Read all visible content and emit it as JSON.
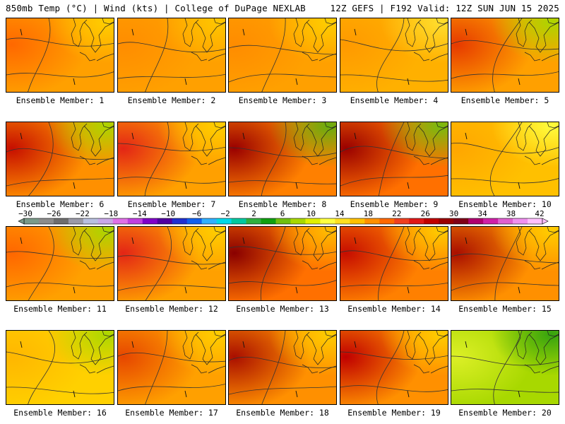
{
  "header": {
    "left": "850mb Temp (°C) | Wind (kts) | College of DuPage NEXLAB",
    "right": "12Z GEFS | F192 Valid: 12Z SUN JUN 15 2025"
  },
  "caption_prefix": "Ensemble Member: ",
  "members": [
    {
      "label": "Ensemble Member: 1"
    },
    {
      "label": "Ensemble Member: 2"
    },
    {
      "label": "Ensemble Member: 3"
    },
    {
      "label": "Ensemble Member: 4"
    },
    {
      "label": "Ensemble Member: 5"
    },
    {
      "label": "Ensemble Member: 6"
    },
    {
      "label": "Ensemble Member: 7"
    },
    {
      "label": "Ensemble Member: 8"
    },
    {
      "label": "Ensemble Member: 9"
    },
    {
      "label": "Ensemble Member: 10"
    },
    {
      "label": "Ensemble Member: 11"
    },
    {
      "label": "Ensemble Member: 12"
    },
    {
      "label": "Ensemble Member: 13"
    },
    {
      "label": "Ensemble Member: 14"
    },
    {
      "label": "Ensemble Member: 15"
    },
    {
      "label": "Ensemble Member: 16"
    },
    {
      "label": "Ensemble Member: 17"
    },
    {
      "label": "Ensemble Member: 18"
    },
    {
      "label": "Ensemble Member: 19"
    },
    {
      "label": "Ensemble Member: 20"
    }
  ],
  "colorbar": {
    "labels": [
      "−30",
      "−26",
      "−22",
      "−18",
      "−14",
      "−10",
      "−6",
      "−2",
      "2",
      "6",
      "10",
      "14",
      "18",
      "22",
      "26",
      "30",
      "34",
      "38",
      "42"
    ],
    "colors": [
      "#7a9a8a",
      "#8c8c8c",
      "#6e6e6e",
      "#9a9aa8",
      "#b8c0e0",
      "#c8a8e8",
      "#e070e8",
      "#c040e0",
      "#8000c8",
      "#5000a0",
      "#2030d0",
      "#1060f0",
      "#30b0ff",
      "#00d8e8",
      "#00c8a0",
      "#30b040",
      "#10a010",
      "#70c010",
      "#a8d800",
      "#e0f000",
      "#ffff40",
      "#ffe020",
      "#ffc000",
      "#ff9000",
      "#ff6800",
      "#f04020",
      "#e01818",
      "#c00000",
      "#9a0000",
      "#800018",
      "#b00070",
      "#d020a8",
      "#e060d0",
      "#f090f0",
      "#ffc0ff"
    ]
  }
}
